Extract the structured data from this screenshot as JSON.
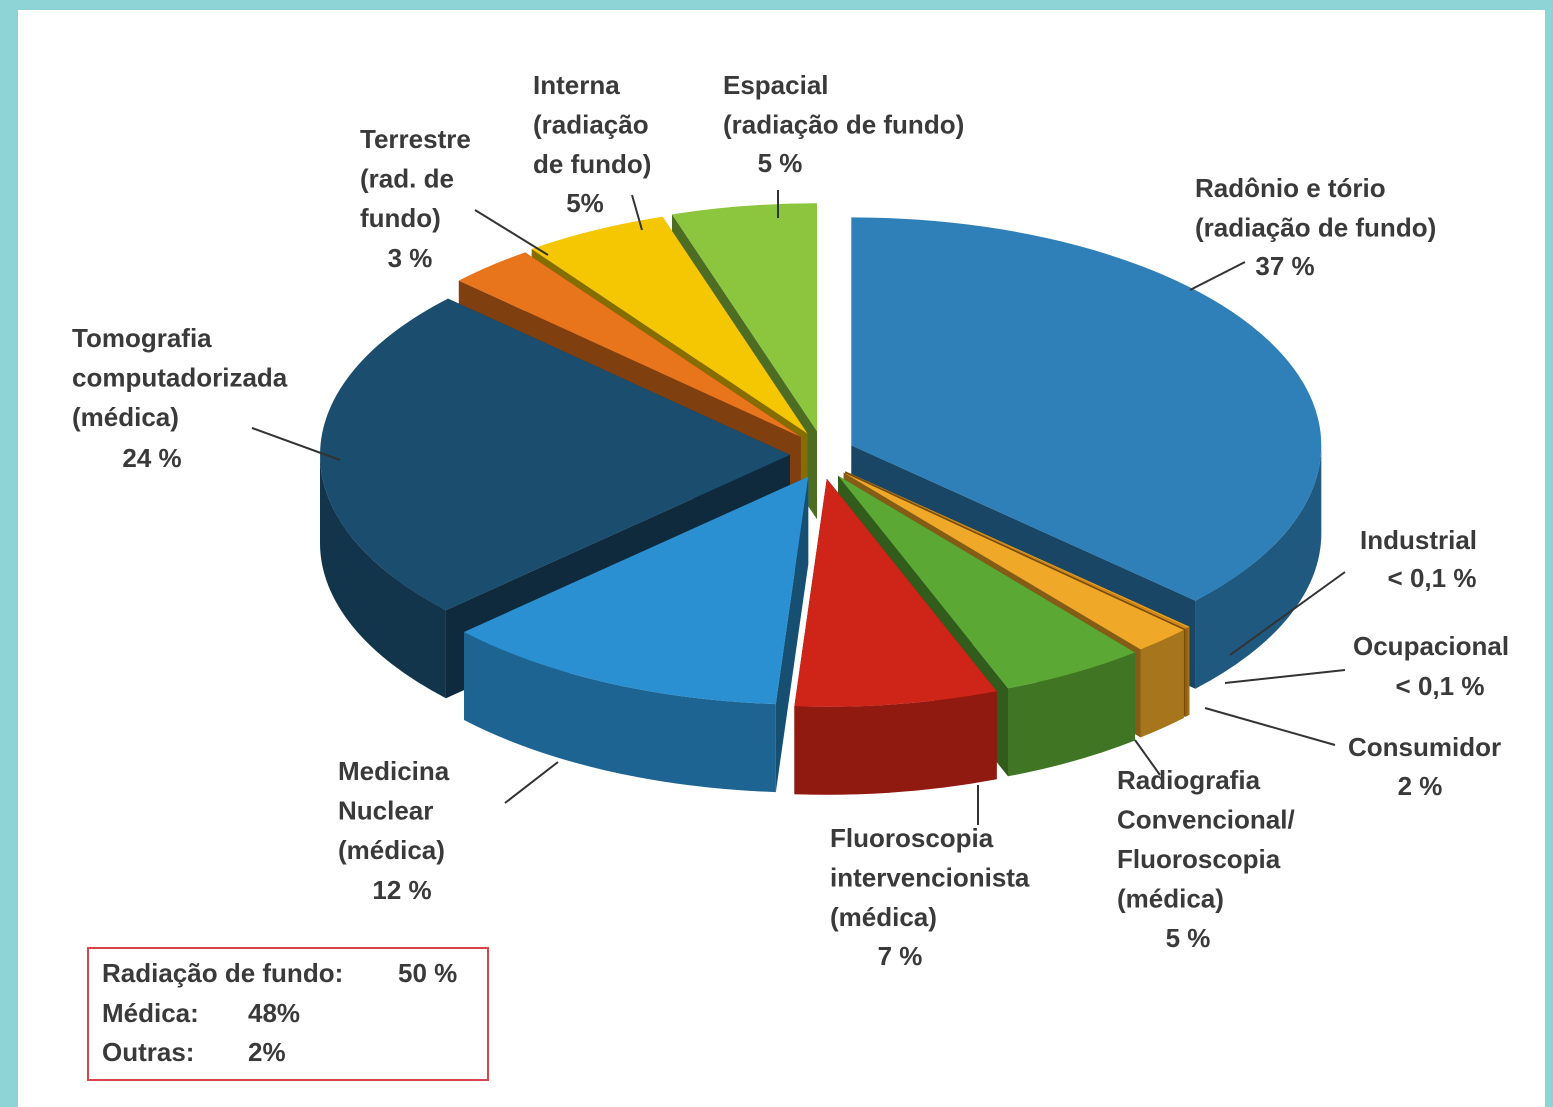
{
  "chart_data": {
    "type": "pie",
    "categories": [
      "Radônio e tório (radiação de fundo)",
      "Industrial",
      "Ocupacional",
      "Consumidor",
      "Radiografia Convencional/ Fluoroscopia (médica)",
      "Fluoroscopia intervencionista (médica)",
      "Medicina Nuclear (médica)",
      "Tomografia computadorizada (médica)",
      "Terrestre (rad. de fundo)",
      "Interna (radiação de fundo)",
      "Espacial (radiação de fundo)"
    ],
    "values": [
      37,
      0.1,
      0.1,
      2,
      5,
      7,
      12,
      24,
      3,
      5,
      5
    ],
    "value_labels": [
      "37 %",
      "< 0,1 %",
      "< 0,1 %",
      "2 %",
      "5 %",
      "7 %",
      "12 %",
      "24 %",
      "3 %",
      "5%",
      "5 %"
    ],
    "colors": [
      "#2f80b8",
      "#e8a020",
      "#d88a18",
      "#f0a828",
      "#5ca834",
      "#cf2418",
      "#2b90d2",
      "#1b4d6e",
      "#e8741c",
      "#f5c602",
      "#8cc63f"
    ],
    "summary": [
      {
        "label": "Radiação de fundo:",
        "value": "50 %"
      },
      {
        "label": "Médica:",
        "value": "48%"
      },
      {
        "label": "Outras:",
        "value": "2%"
      }
    ]
  }
}
